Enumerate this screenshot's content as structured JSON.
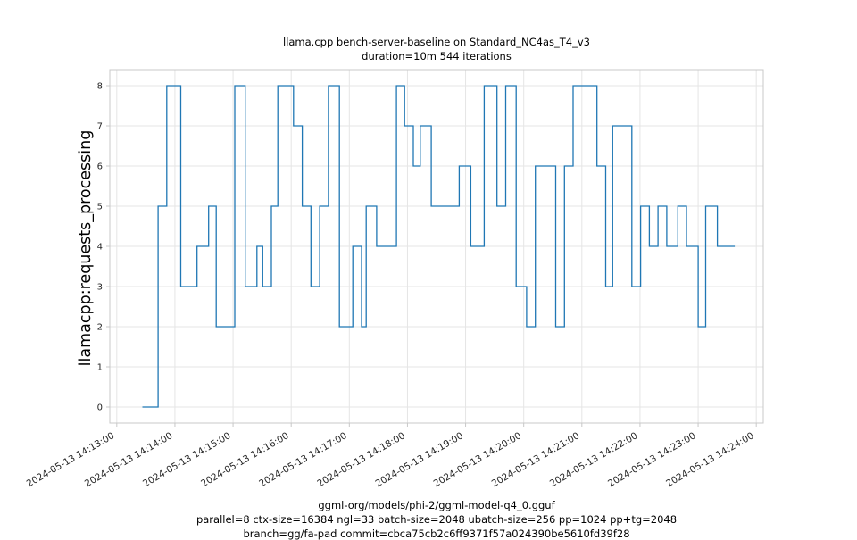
{
  "chart_data": {
    "type": "line",
    "step": "post",
    "title": "llama.cpp bench-server-baseline on Standard_NC4as_T4_v3",
    "subtitle": "duration=10m 544 iterations",
    "ylabel": "llamacpp:requests_processing",
    "footer_lines": [
      "ggml-org/models/phi-2/ggml-model-q4_0.gguf",
      "parallel=8 ctx-size=16384 ngl=33 batch-size=2048 ubatch-size=256 pp=1024 pp+tg=2048",
      "branch=gg/fa-pad commit=cbca75cb2c6ff9371f57a024390be5610fd39f28"
    ],
    "x_unit": "minutes since 2024-05-13 14:13:00",
    "x_tick_labels": [
      "2024-05-13 14:13:00",
      "2024-05-13 14:14:00",
      "2024-05-13 14:15:00",
      "2024-05-13 14:16:00",
      "2024-05-13 14:17:00",
      "2024-05-13 14:18:00",
      "2024-05-13 14:19:00",
      "2024-05-13 14:20:00",
      "2024-05-13 14:21:00",
      "2024-05-13 14:22:00",
      "2024-05-13 14:23:00",
      "2024-05-13 14:24:00"
    ],
    "x_ticks": [
      0,
      1,
      2,
      3,
      4,
      5,
      6,
      7,
      8,
      9,
      10,
      11
    ],
    "y_ticks": [
      0,
      1,
      2,
      3,
      4,
      5,
      6,
      7,
      8
    ],
    "xlim": [
      -0.12,
      11.12
    ],
    "ylim": [
      -0.4,
      8.4
    ],
    "grid": true,
    "legend": "none",
    "line_color": "#1f77b4",
    "grid_color": "#e5e5e5",
    "spine_color": "#c8c8c8",
    "tick_label_color": "#262626",
    "points": [
      [
        0.44,
        0
      ],
      [
        0.71,
        5
      ],
      [
        0.86,
        8
      ],
      [
        1.1,
        3
      ],
      [
        1.38,
        4
      ],
      [
        1.58,
        5
      ],
      [
        1.71,
        2
      ],
      [
        2.03,
        8
      ],
      [
        2.21,
        3
      ],
      [
        2.41,
        4
      ],
      [
        2.51,
        3
      ],
      [
        2.66,
        5
      ],
      [
        2.77,
        8
      ],
      [
        3.04,
        7
      ],
      [
        3.19,
        5
      ],
      [
        3.34,
        3
      ],
      [
        3.49,
        5
      ],
      [
        3.64,
        8
      ],
      [
        3.83,
        2
      ],
      [
        4.06,
        4
      ],
      [
        4.21,
        2
      ],
      [
        4.29,
        5
      ],
      [
        4.47,
        4
      ],
      [
        4.81,
        8
      ],
      [
        4.95,
        7
      ],
      [
        5.1,
        6
      ],
      [
        5.22,
        7
      ],
      [
        5.41,
        5
      ],
      [
        5.89,
        6
      ],
      [
        6.09,
        4
      ],
      [
        6.32,
        8
      ],
      [
        6.54,
        5
      ],
      [
        6.69,
        8
      ],
      [
        6.87,
        3
      ],
      [
        7.05,
        2
      ],
      [
        7.2,
        6
      ],
      [
        7.55,
        2
      ],
      [
        7.7,
        6
      ],
      [
        7.85,
        8
      ],
      [
        8.26,
        6
      ],
      [
        8.41,
        3
      ],
      [
        8.53,
        7
      ],
      [
        8.86,
        3
      ],
      [
        9.01,
        5
      ],
      [
        9.16,
        4
      ],
      [
        9.31,
        5
      ],
      [
        9.46,
        4
      ],
      [
        9.65,
        5
      ],
      [
        9.8,
        4
      ],
      [
        10.0,
        2
      ],
      [
        10.13,
        5
      ],
      [
        10.33,
        4
      ],
      [
        10.63,
        4
      ]
    ]
  }
}
